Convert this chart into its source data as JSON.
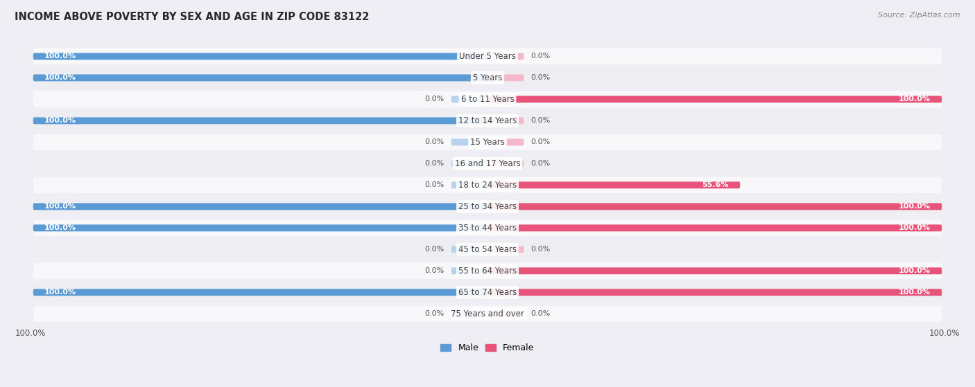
{
  "title": "INCOME ABOVE POVERTY BY SEX AND AGE IN ZIP CODE 83122",
  "source": "Source: ZipAtlas.com",
  "categories": [
    "Under 5 Years",
    "5 Years",
    "6 to 11 Years",
    "12 to 14 Years",
    "15 Years",
    "16 and 17 Years",
    "18 to 24 Years",
    "25 to 34 Years",
    "35 to 44 Years",
    "45 to 54 Years",
    "55 to 64 Years",
    "65 to 74 Years",
    "75 Years and over"
  ],
  "male_values": [
    100.0,
    100.0,
    0.0,
    100.0,
    0.0,
    0.0,
    0.0,
    100.0,
    100.0,
    0.0,
    0.0,
    100.0,
    0.0
  ],
  "female_values": [
    0.0,
    0.0,
    100.0,
    0.0,
    0.0,
    0.0,
    55.6,
    100.0,
    100.0,
    0.0,
    100.0,
    100.0,
    0.0
  ],
  "male_color_full": "#5b9bd5",
  "male_color_empty": "#b8d4ed",
  "female_color_full": "#e8537a",
  "female_color_empty": "#f4b8cb",
  "bg_color": "#eeeef4",
  "row_bg_even": "#f8f8fb",
  "row_bg_odd": "#ededf2",
  "label_color": "#444444",
  "value_color_inside": "#ffffff",
  "value_color_outside": "#555555"
}
